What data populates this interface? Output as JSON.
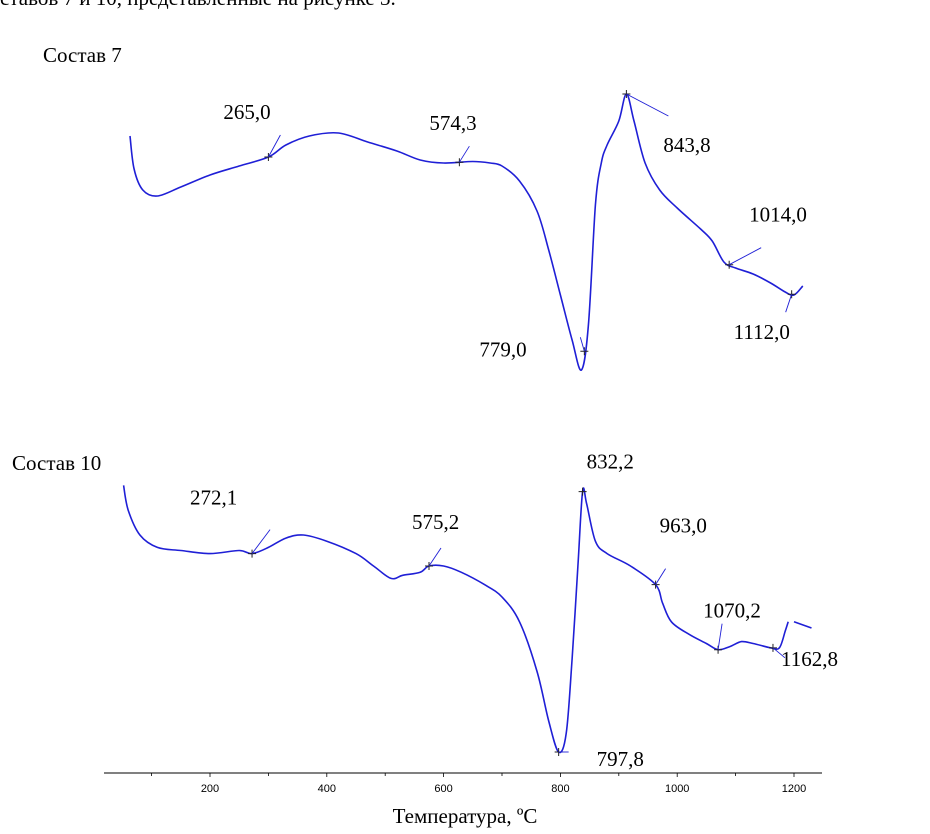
{
  "caption_fragment": "ставов 7 и 10, представленные на рисунке 3.",
  "chart_data": {
    "type": "line",
    "xlabel": "Температура, ºС",
    "xlim": [
      45,
      1250
    ],
    "xticks": [
      200,
      400,
      600,
      800,
      1000,
      1200
    ],
    "curve_color": "#1f1fd6",
    "series": [
      {
        "name": "Состав 7",
        "points": [
          [
            63,
            0.33
          ],
          [
            70,
            0.22
          ],
          [
            85,
            0.15
          ],
          [
            110,
            0.13
          ],
          [
            150,
            0.16
          ],
          [
            200,
            0.2
          ],
          [
            250,
            0.23
          ],
          [
            300,
            0.26
          ],
          [
            330,
            0.3
          ],
          [
            370,
            0.33
          ],
          [
            420,
            0.34
          ],
          [
            470,
            0.31
          ],
          [
            520,
            0.28
          ],
          [
            560,
            0.25
          ],
          [
            600,
            0.24
          ],
          [
            650,
            0.245
          ],
          [
            680,
            0.24
          ],
          [
            700,
            0.23
          ],
          [
            730,
            0.18
          ],
          [
            760,
            0.08
          ],
          [
            780,
            -0.05
          ],
          [
            800,
            -0.2
          ],
          [
            820,
            -0.35
          ],
          [
            836,
            -0.45
          ],
          [
            848,
            -0.3
          ],
          [
            860,
            0.1
          ],
          [
            870,
            0.24
          ],
          [
            880,
            0.3
          ],
          [
            900,
            0.38
          ],
          [
            913,
            0.47
          ],
          [
            926,
            0.38
          ],
          [
            945,
            0.24
          ],
          [
            970,
            0.15
          ],
          [
            1000,
            0.09
          ],
          [
            1040,
            0.02
          ],
          [
            1060,
            -0.02
          ],
          [
            1080,
            -0.09
          ],
          [
            1100,
            -0.11
          ],
          [
            1130,
            -0.13
          ],
          [
            1160,
            -0.16
          ],
          [
            1185,
            -0.19
          ],
          [
            1200,
            -0.2
          ],
          [
            1215,
            -0.17
          ]
        ],
        "peaks": [
          {
            "x": 300,
            "label": "265,0"
          },
          {
            "x": 627,
            "label": "574,3"
          },
          {
            "x": 841,
            "label": "779,0"
          },
          {
            "x": 913,
            "label": "843,8"
          },
          {
            "x": 1089,
            "label": "1014,0"
          },
          {
            "x": 1196,
            "label": "1112,0"
          }
        ]
      },
      {
        "name": "Состав 10",
        "points": [
          [
            52,
            0.33
          ],
          [
            60,
            0.29
          ],
          [
            80,
            0.25
          ],
          [
            110,
            0.23
          ],
          [
            150,
            0.225
          ],
          [
            200,
            0.22
          ],
          [
            250,
            0.225
          ],
          [
            272,
            0.22
          ],
          [
            300,
            0.23
          ],
          [
            330,
            0.245
          ],
          [
            360,
            0.25
          ],
          [
            400,
            0.24
          ],
          [
            450,
            0.22
          ],
          [
            480,
            0.2
          ],
          [
            510,
            0.18
          ],
          [
            530,
            0.185
          ],
          [
            560,
            0.19
          ],
          [
            575,
            0.2
          ],
          [
            600,
            0.2
          ],
          [
            630,
            0.19
          ],
          [
            670,
            0.17
          ],
          [
            700,
            0.15
          ],
          [
            730,
            0.11
          ],
          [
            760,
            0.03
          ],
          [
            780,
            -0.05
          ],
          [
            797,
            -0.1
          ],
          [
            810,
            -0.07
          ],
          [
            820,
            0.05
          ],
          [
            830,
            0.2
          ],
          [
            838,
            0.32
          ],
          [
            845,
            0.3
          ],
          [
            860,
            0.24
          ],
          [
            880,
            0.22
          ],
          [
            920,
            0.2
          ],
          [
            963,
            0.17
          ],
          [
            975,
            0.14
          ],
          [
            990,
            0.11
          ],
          [
            1020,
            0.09
          ],
          [
            1050,
            0.075
          ],
          [
            1070,
            0.065
          ],
          [
            1090,
            0.07
          ],
          [
            1110,
            0.078
          ],
          [
            1130,
            0.075
          ],
          [
            1160,
            0.068
          ],
          [
            1175,
            0.068
          ],
          [
            1185,
            0.095
          ],
          [
            1190,
            0.11
          ]
        ],
        "tail": [
          [
            1200,
            0.11
          ],
          [
            1230,
            0.1
          ]
        ],
        "peaks": [
          {
            "x": 272,
            "label": "272,1"
          },
          {
            "x": 575,
            "label": "575,2"
          },
          {
            "x": 797,
            "label": "797,8"
          },
          {
            "x": 838,
            "label": "832,2"
          },
          {
            "x": 963,
            "label": "963,0"
          },
          {
            "x": 1070,
            "label": "1070,2"
          },
          {
            "x": 1164,
            "label": "1162,8"
          }
        ]
      }
    ]
  }
}
